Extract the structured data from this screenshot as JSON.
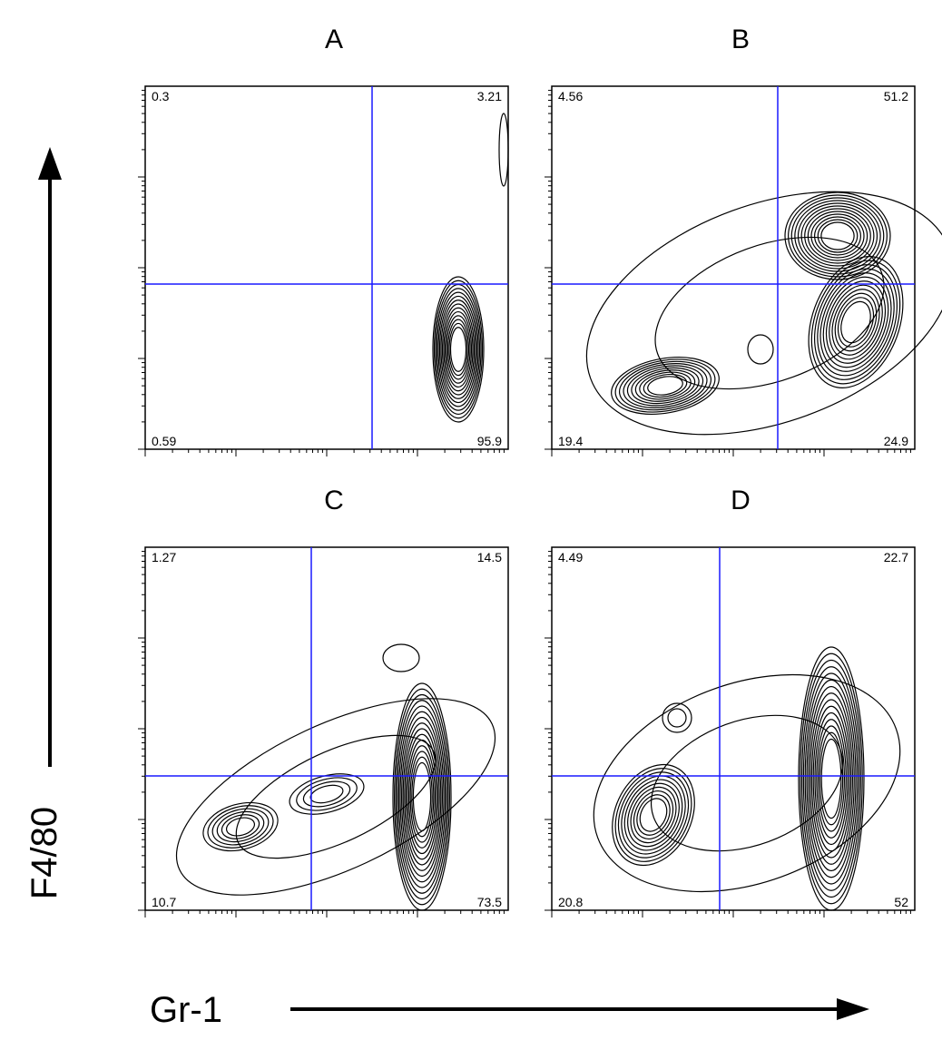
{
  "y_axis_label": "F4/80",
  "x_axis_label": "Gr-1",
  "panels": [
    {
      "title": "A",
      "upper_left": 0.3,
      "upper_right": 3.21,
      "lower_left": 0.59,
      "lower_right": 95.9
    },
    {
      "title": "B",
      "upper_left": 4.56,
      "upper_right": 51.2,
      "lower_left": 19.4,
      "lower_right": 24.9
    },
    {
      "title": "C",
      "upper_left": 1.27,
      "upper_right": 14.5,
      "lower_left": 10.7,
      "lower_right": 73.5
    },
    {
      "title": "D",
      "upper_left": 4.49,
      "upper_right": 22.7,
      "lower_left": 20.8,
      "lower_right": 52
    }
  ]
}
